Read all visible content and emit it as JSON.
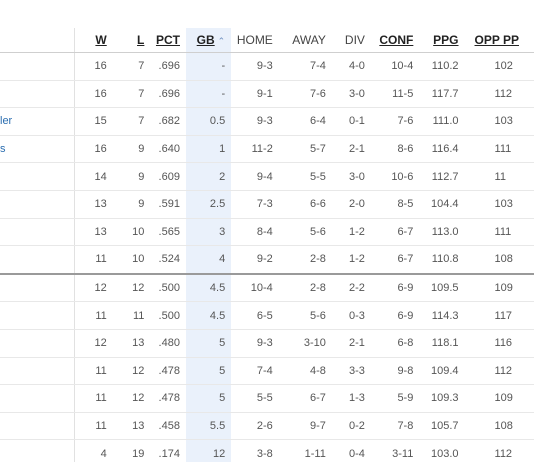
{
  "columns": {
    "w": "W",
    "l": "L",
    "pct": "PCT",
    "gb": "GB",
    "home": "HOME",
    "away": "AWAY",
    "div": "DIV",
    "conf": "CONF",
    "ppg": "PPG",
    "opp": "OPP PP"
  },
  "sort_icon": "caret-up-icon",
  "rows": [
    {
      "team": "",
      "w": "16",
      "l": "7",
      "pct": ".696",
      "gb": "-",
      "home": "9-3",
      "away": "7-4",
      "div": "4-0",
      "conf": "10-4",
      "ppg": "110.2",
      "opp": "102"
    },
    {
      "team": "",
      "w": "16",
      "l": "7",
      "pct": ".696",
      "gb": "-",
      "home": "9-1",
      "away": "7-6",
      "div": "3-0",
      "conf": "11-5",
      "ppg": "117.7",
      "opp": "112"
    },
    {
      "team": "ler",
      "w": "15",
      "l": "7",
      "pct": ".682",
      "gb": "0.5",
      "home": "9-3",
      "away": "6-4",
      "div": "0-1",
      "conf": "7-6",
      "ppg": "111.0",
      "opp": "103"
    },
    {
      "team": "s",
      "w": "16",
      "l": "9",
      "pct": ".640",
      "gb": "1",
      "home": "11-2",
      "away": "5-7",
      "div": "2-1",
      "conf": "8-6",
      "ppg": "116.4",
      "opp": "111"
    },
    {
      "team": "",
      "w": "14",
      "l": "9",
      "pct": ".609",
      "gb": "2",
      "home": "9-4",
      "away": "5-5",
      "div": "3-0",
      "conf": "10-6",
      "ppg": "112.7",
      "opp": "11"
    },
    {
      "team": "",
      "w": "13",
      "l": "9",
      "pct": ".591",
      "gb": "2.5",
      "home": "7-3",
      "away": "6-6",
      "div": "2-0",
      "conf": "8-5",
      "ppg": "104.4",
      "opp": "103"
    },
    {
      "team": "",
      "w": "13",
      "l": "10",
      "pct": ".565",
      "gb": "3",
      "home": "8-4",
      "away": "5-6",
      "div": "1-2",
      "conf": "6-7",
      "ppg": "113.0",
      "opp": "111"
    },
    {
      "team": "",
      "w": "11",
      "l": "10",
      "pct": ".524",
      "gb": "4",
      "home": "9-2",
      "away": "2-8",
      "div": "1-2",
      "conf": "6-7",
      "ppg": "110.8",
      "opp": "108"
    },
    {
      "team": "",
      "w": "12",
      "l": "12",
      "pct": ".500",
      "gb": "4.5",
      "home": "10-4",
      "away": "2-8",
      "div": "2-2",
      "conf": "6-9",
      "ppg": "109.5",
      "opp": "109"
    },
    {
      "team": "",
      "w": "11",
      "l": "11",
      "pct": ".500",
      "gb": "4.5",
      "home": "6-5",
      "away": "5-6",
      "div": "0-3",
      "conf": "6-9",
      "ppg": "114.3",
      "opp": "117"
    },
    {
      "team": "",
      "w": "12",
      "l": "13",
      "pct": ".480",
      "gb": "5",
      "home": "9-3",
      "away": "3-10",
      "div": "2-1",
      "conf": "6-8",
      "ppg": "118.1",
      "opp": "116"
    },
    {
      "team": "",
      "w": "11",
      "l": "12",
      "pct": ".478",
      "gb": "5",
      "home": "7-4",
      "away": "4-8",
      "div": "3-3",
      "conf": "9-8",
      "ppg": "109.4",
      "opp": "112"
    },
    {
      "team": "",
      "w": "11",
      "l": "12",
      "pct": ".478",
      "gb": "5",
      "home": "5-5",
      "away": "6-7",
      "div": "1-3",
      "conf": "5-9",
      "ppg": "109.3",
      "opp": "109"
    },
    {
      "team": "",
      "w": "11",
      "l": "13",
      "pct": ".458",
      "gb": "5.5",
      "home": "2-6",
      "away": "9-7",
      "div": "0-2",
      "conf": "7-8",
      "ppg": "105.7",
      "opp": "108"
    },
    {
      "team": "",
      "w": "4",
      "l": "19",
      "pct": ".174",
      "gb": "12",
      "home": "3-8",
      "away": "1-11",
      "div": "0-4",
      "conf": "3-11",
      "ppg": "103.0",
      "opp": "112"
    }
  ],
  "playoff_cutoff_after_row": 7
}
